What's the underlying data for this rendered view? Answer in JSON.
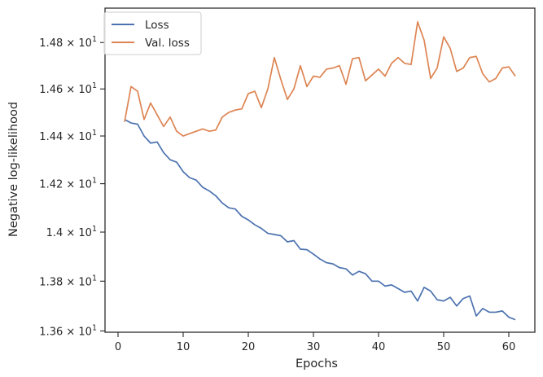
{
  "chart_data": {
    "type": "line",
    "xlabel": "Epochs",
    "ylabel": "Negative log-likelihood",
    "xlim": [
      -2,
      64
    ],
    "ylim": [
      13.595,
      14.95
    ],
    "yscale": "log",
    "grid": false,
    "legend_position": "top-left",
    "x_ticks": [
      0,
      10,
      20,
      30,
      40,
      50,
      60
    ],
    "y_ticks": [
      {
        "value": 13.6,
        "mantissa": "1.36",
        "base": "10",
        "exp": "1"
      },
      {
        "value": 13.8,
        "mantissa": "1.38",
        "base": "10",
        "exp": "1"
      },
      {
        "value": 14.0,
        "mantissa": "1.4",
        "base": "10",
        "exp": "1"
      },
      {
        "value": 14.2,
        "mantissa": "1.42",
        "base": "10",
        "exp": "1"
      },
      {
        "value": 14.4,
        "mantissa": "1.44",
        "base": "10",
        "exp": "1"
      },
      {
        "value": 14.6,
        "mantissa": "1.46",
        "base": "10",
        "exp": "1"
      },
      {
        "value": 14.8,
        "mantissa": "1.48",
        "base": "10",
        "exp": "1"
      }
    ],
    "series": [
      {
        "name": "Loss",
        "color": "#4c72b0",
        "x": [
          1,
          2,
          3,
          4,
          5,
          6,
          7,
          8,
          9,
          10,
          11,
          12,
          13,
          14,
          15,
          16,
          17,
          18,
          19,
          20,
          21,
          22,
          23,
          24,
          25,
          26,
          27,
          28,
          29,
          30,
          31,
          32,
          33,
          34,
          35,
          36,
          37,
          38,
          39,
          40,
          41,
          42,
          43,
          44,
          45,
          46,
          47,
          48,
          49,
          50,
          51,
          52,
          53,
          54,
          55,
          56,
          57,
          58,
          59,
          60,
          61
        ],
        "y": [
          14.47,
          14.455,
          14.45,
          14.4,
          14.37,
          14.375,
          14.33,
          14.3,
          14.29,
          14.25,
          14.225,
          14.215,
          14.185,
          14.17,
          14.15,
          14.12,
          14.1,
          14.095,
          14.065,
          14.05,
          14.03,
          14.015,
          13.995,
          13.99,
          13.985,
          13.96,
          13.965,
          13.93,
          13.928,
          13.91,
          13.89,
          13.875,
          13.87,
          13.855,
          13.85,
          13.825,
          13.84,
          13.83,
          13.8,
          13.8,
          13.78,
          13.785,
          13.77,
          13.755,
          13.76,
          13.72,
          13.775,
          13.76,
          13.725,
          13.72,
          13.735,
          13.7,
          13.73,
          13.74,
          13.66,
          13.69,
          13.675,
          13.675,
          13.68,
          13.655,
          13.645
        ]
      },
      {
        "name": "Val. loss",
        "color": "#dd8452",
        "x": [
          1,
          2,
          3,
          4,
          5,
          6,
          7,
          8,
          9,
          10,
          11,
          12,
          13,
          14,
          15,
          16,
          17,
          18,
          19,
          20,
          21,
          22,
          23,
          24,
          25,
          26,
          27,
          28,
          29,
          30,
          31,
          32,
          33,
          34,
          35,
          36,
          37,
          38,
          39,
          40,
          41,
          42,
          43,
          44,
          45,
          46,
          47,
          48,
          49,
          50,
          51,
          52,
          53,
          54,
          55,
          56,
          57,
          58,
          59,
          60,
          61
        ],
        "y": [
          14.46,
          14.61,
          14.59,
          14.47,
          14.54,
          14.49,
          14.44,
          14.48,
          14.42,
          14.4,
          14.41,
          14.42,
          14.43,
          14.42,
          14.425,
          14.48,
          14.5,
          14.51,
          14.515,
          14.58,
          14.59,
          14.52,
          14.6,
          14.735,
          14.64,
          14.555,
          14.6,
          14.7,
          14.61,
          14.655,
          14.65,
          14.685,
          14.69,
          14.7,
          14.62,
          14.73,
          14.735,
          14.635,
          14.66,
          14.685,
          14.655,
          14.71,
          14.735,
          14.71,
          14.705,
          14.89,
          14.81,
          14.645,
          14.69,
          14.825,
          14.775,
          14.675,
          14.69,
          14.735,
          14.74,
          14.665,
          14.63,
          14.645,
          14.69,
          14.695,
          14.655
        ]
      }
    ]
  }
}
